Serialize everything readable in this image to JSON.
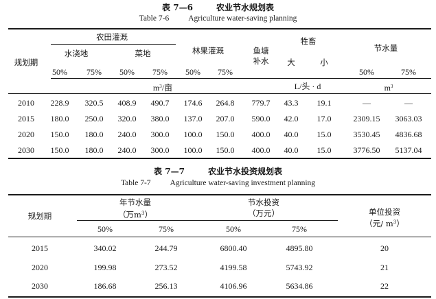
{
  "table1": {
    "caption_cn": "表 7—6",
    "caption_cn_title": "农业节水规划表",
    "caption_en": "Table 7-6",
    "caption_en_title": "Agriculture water-saving planning",
    "headers": {
      "period": "规划期",
      "farmland": "农田灌溉",
      "paddy": "水浇地",
      "vegetable": "菜地",
      "orchard": "林果灌溉",
      "fishpond_1": "鱼塘",
      "fishpond_2": "补水",
      "livestock": "牲畜",
      "large": "大",
      "small": "小",
      "saving": "节水量",
      "p50": "50%",
      "p75": "75%",
      "unit_mu": "/亩",
      "unit_m": "m",
      "unit_head": "L/头 · d",
      "unit_m3": "m",
      "sup3": "3"
    },
    "rows": [
      {
        "year": "2010",
        "v": [
          "228.9",
          "320.5",
          "408.9",
          "490.7",
          "174.6",
          "264.8",
          "779.7",
          "43.3",
          "19.1",
          "—",
          "—"
        ]
      },
      {
        "year": "2015",
        "v": [
          "180.0",
          "250.0",
          "320.0",
          "380.0",
          "137.0",
          "207.0",
          "590.0",
          "42.0",
          "17.0",
          "2309.15",
          "3063.03"
        ]
      },
      {
        "year": "2020",
        "v": [
          "150.0",
          "180.0",
          "240.0",
          "300.0",
          "100.0",
          "150.0",
          "400.0",
          "40.0",
          "15.0",
          "3530.45",
          "4836.68"
        ]
      },
      {
        "year": "2030",
        "v": [
          "150.0",
          "180.0",
          "240.0",
          "300.0",
          "100.0",
          "150.0",
          "400.0",
          "40.0",
          "15.0",
          "3776.50",
          "5137.04"
        ]
      }
    ]
  },
  "table2": {
    "caption_cn": "表 7—7",
    "caption_cn_title": "农业节水投资规划表",
    "caption_en": "Table 7-7",
    "caption_en_title": "Agriculture water-saving investment planning",
    "headers": {
      "period": "规划期",
      "annual_saving": "年节水量",
      "annual_unit_a": "（万m",
      "annual_unit_b": "）",
      "investment": "节水投资",
      "investment_unit": "（万元）",
      "unit_invest": "单位投资",
      "unit_invest_unit_a": "（元/ m",
      "unit_invest_unit_b": "）",
      "sup3": "3",
      "p50": "50%",
      "p75": "75%"
    },
    "rows": [
      {
        "year": "2015",
        "v": [
          "340.02",
          "244.79",
          "6800.40",
          "4895.80",
          "20"
        ]
      },
      {
        "year": "2020",
        "v": [
          "199.98",
          "273.52",
          "4199.58",
          "5743.92",
          "21"
        ]
      },
      {
        "year": "2030",
        "v": [
          "186.68",
          "256.13",
          "4106.96",
          "5634.86",
          "22"
        ]
      }
    ]
  }
}
